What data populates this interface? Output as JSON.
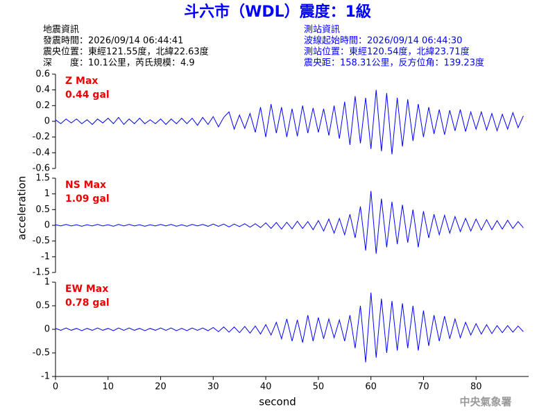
{
  "header": {
    "title": "斗六市（WDL）震度：1級",
    "left": [
      "地震資訊",
      "發震時間：2026/09/14 06:44:41",
      "震央位置：東經121.55度，北緯22.63度",
      "深　　度：10.1公里，芮氏規模：4.9"
    ],
    "right": [
      "測站資訊",
      "波線起始時間：2026/09/14 06:44:30",
      "測站位置：東經120.54度，北緯23.71度",
      "震央距：158.31公里，反方位角：139.23度"
    ],
    "footer": "中央氣象署"
  },
  "chart_data": [
    {
      "type": "line",
      "annotations": [
        "Z Max",
        "0.44 gal"
      ],
      "color": "#0000ff",
      "x": [
        0,
        1,
        2,
        3,
        4,
        5,
        6,
        7,
        8,
        9,
        10,
        11,
        12,
        13,
        14,
        15,
        16,
        17,
        18,
        19,
        20,
        21,
        22,
        23,
        24,
        25,
        26,
        27,
        28,
        29,
        30,
        31,
        32,
        33,
        34,
        35,
        36,
        37,
        38,
        39,
        40,
        41,
        42,
        43,
        44,
        45,
        46,
        47,
        48,
        49,
        50,
        51,
        52,
        53,
        54,
        55,
        56,
        57,
        58,
        59,
        60,
        61,
        62,
        63,
        64,
        65,
        66,
        67,
        68,
        69,
        70,
        71,
        72,
        73,
        74,
        75,
        76,
        77,
        78,
        79,
        80,
        81,
        82,
        83,
        84,
        85,
        86,
        87,
        88,
        89
      ],
      "values": [
        0.02,
        -0.03,
        0.03,
        -0.02,
        0.03,
        -0.03,
        0.02,
        -0.04,
        0.03,
        -0.02,
        0.04,
        -0.03,
        0.05,
        -0.04,
        0.03,
        -0.03,
        0.04,
        -0.03,
        0.02,
        -0.03,
        0.03,
        -0.04,
        0.03,
        -0.03,
        0.04,
        -0.03,
        0.04,
        -0.05,
        0.05,
        -0.04,
        0.06,
        -0.07,
        0.05,
        0.12,
        -0.1,
        0.08,
        -0.09,
        0.1,
        -0.14,
        0.18,
        -0.2,
        0.22,
        -0.15,
        0.18,
        -0.2,
        0.16,
        -0.19,
        0.2,
        -0.15,
        0.17,
        -0.14,
        0.16,
        -0.18,
        0.2,
        -0.22,
        0.25,
        -0.3,
        0.32,
        -0.28,
        0.3,
        -0.35,
        0.4,
        -0.38,
        0.36,
        -0.42,
        0.3,
        -0.32,
        0.28,
        -0.25,
        0.22,
        -0.2,
        0.18,
        -0.16,
        0.15,
        -0.17,
        0.14,
        -0.12,
        0.15,
        -0.13,
        0.12,
        -0.1,
        0.12,
        -0.11,
        0.1,
        -0.12,
        0.09,
        -0.1,
        0.11,
        -0.08,
        0.07
      ],
      "xlim": [
        0,
        90
      ],
      "ylim": [
        -0.6,
        0.6
      ],
      "yticks": [
        -0.6,
        -0.4,
        -0.2,
        0,
        0.2,
        0.4,
        0.6
      ]
    },
    {
      "type": "line",
      "annotations": [
        "NS Max",
        "1.09 gal"
      ],
      "color": "#0000ff",
      "ylabel": "acceleration",
      "x": [
        0,
        1,
        2,
        3,
        4,
        5,
        6,
        7,
        8,
        9,
        10,
        11,
        12,
        13,
        14,
        15,
        16,
        17,
        18,
        19,
        20,
        21,
        22,
        23,
        24,
        25,
        26,
        27,
        28,
        29,
        30,
        31,
        32,
        33,
        34,
        35,
        36,
        37,
        38,
        39,
        40,
        41,
        42,
        43,
        44,
        45,
        46,
        47,
        48,
        49,
        50,
        51,
        52,
        53,
        54,
        55,
        56,
        57,
        58,
        59,
        60,
        61,
        62,
        63,
        64,
        65,
        66,
        67,
        68,
        69,
        70,
        71,
        72,
        73,
        74,
        75,
        76,
        77,
        78,
        79,
        80,
        81,
        82,
        83,
        84,
        85,
        86,
        87,
        88,
        89
      ],
      "values": [
        0.02,
        -0.02,
        0.03,
        -0.02,
        0.02,
        -0.03,
        0.02,
        -0.02,
        0.03,
        -0.02,
        0.02,
        -0.03,
        0.03,
        -0.02,
        0.03,
        -0.02,
        0.02,
        -0.03,
        0.02,
        -0.02,
        0.03,
        -0.02,
        0.03,
        -0.03,
        0.02,
        -0.03,
        0.03,
        -0.02,
        0.03,
        -0.03,
        0.04,
        -0.03,
        0.04,
        -0.05,
        0.04,
        -0.04,
        0.05,
        -0.06,
        0.05,
        -0.07,
        0.08,
        -0.1,
        0.09,
        -0.12,
        0.1,
        -0.11,
        0.13,
        -0.1,
        0.12,
        -0.14,
        0.15,
        -0.18,
        0.2,
        -0.25,
        0.22,
        -0.3,
        0.35,
        -0.4,
        0.6,
        -0.8,
        1.09,
        -0.9,
        0.85,
        -0.7,
        0.75,
        -0.6,
        0.65,
        -0.55,
        0.5,
        -0.7,
        0.45,
        -0.4,
        0.35,
        -0.3,
        0.32,
        -0.25,
        0.28,
        -0.2,
        0.22,
        -0.18,
        0.2,
        -0.15,
        0.18,
        -0.14,
        0.15,
        -0.12,
        0.16,
        -0.1,
        0.12,
        -0.08
      ],
      "xlim": [
        0,
        90
      ],
      "ylim": [
        -1.5,
        1.5
      ],
      "yticks": [
        -1.5,
        -1,
        -0.5,
        0,
        0.5,
        1,
        1.5
      ]
    },
    {
      "type": "line",
      "annotations": [
        "EW Max",
        "0.78 gal"
      ],
      "color": "#0000ff",
      "xlabel": "second",
      "x": [
        0,
        1,
        2,
        3,
        4,
        5,
        6,
        7,
        8,
        9,
        10,
        11,
        12,
        13,
        14,
        15,
        16,
        17,
        18,
        19,
        20,
        21,
        22,
        23,
        24,
        25,
        26,
        27,
        28,
        29,
        30,
        31,
        32,
        33,
        34,
        35,
        36,
        37,
        38,
        39,
        40,
        41,
        42,
        43,
        44,
        45,
        46,
        47,
        48,
        49,
        50,
        51,
        52,
        53,
        54,
        55,
        56,
        57,
        58,
        59,
        60,
        61,
        62,
        63,
        64,
        65,
        66,
        67,
        68,
        69,
        70,
        71,
        72,
        73,
        74,
        75,
        76,
        77,
        78,
        79,
        80,
        81,
        82,
        83,
        84,
        85,
        86,
        87,
        88,
        89
      ],
      "values": [
        0.02,
        -0.02,
        0.03,
        -0.02,
        0.02,
        -0.03,
        0.02,
        -0.02,
        0.03,
        -0.02,
        0.02,
        -0.03,
        0.03,
        -0.02,
        0.03,
        -0.02,
        0.02,
        -0.03,
        0.02,
        -0.02,
        0.03,
        -0.02,
        0.03,
        -0.03,
        0.02,
        -0.03,
        0.03,
        -0.02,
        0.03,
        -0.03,
        0.04,
        -0.05,
        0.05,
        -0.06,
        0.05,
        -0.07,
        0.06,
        -0.08,
        0.07,
        -0.1,
        0.1,
        -0.12,
        0.15,
        -0.2,
        0.22,
        -0.25,
        0.2,
        -0.28,
        0.3,
        -0.25,
        0.25,
        -0.2,
        0.22,
        -0.18,
        0.2,
        -0.25,
        0.3,
        -0.4,
        0.5,
        -0.7,
        0.78,
        -0.6,
        0.65,
        -0.5,
        0.6,
        -0.45,
        0.55,
        -0.4,
        0.5,
        -0.45,
        0.4,
        -0.35,
        0.3,
        -0.25,
        0.28,
        -0.2,
        0.22,
        -0.18,
        0.15,
        -0.12,
        0.12,
        -0.1,
        0.1,
        -0.09,
        0.08,
        -0.07,
        0.08,
        -0.06,
        0.07,
        -0.05
      ],
      "xlim": [
        0,
        90
      ],
      "ylim": [
        -1,
        1
      ],
      "yticks": [
        -1,
        -0.5,
        0,
        0.5,
        1
      ],
      "xticks": [
        0,
        10,
        20,
        30,
        40,
        50,
        60,
        70,
        80
      ]
    }
  ]
}
